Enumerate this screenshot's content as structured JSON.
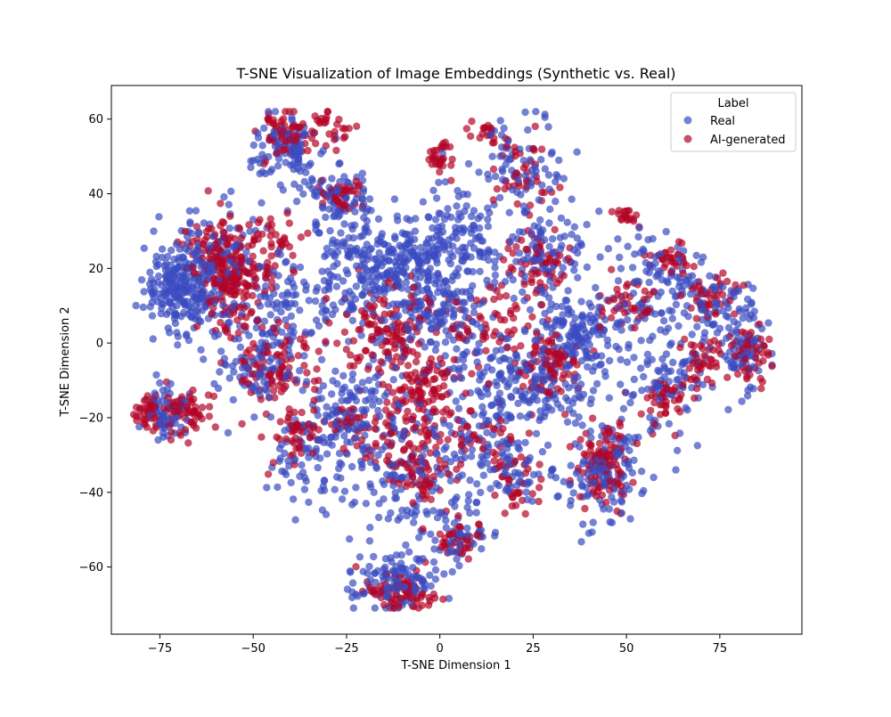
{
  "chart_data": {
    "type": "scatter",
    "title": "T-SNE Visualization of Image Embeddings (Synthetic vs. Real)",
    "xlabel": "T-SNE Dimension 1",
    "ylabel": "T-SNE Dimension 2",
    "xlim": [
      -88,
      97
    ],
    "ylim": [
      -78,
      69
    ],
    "xticks": [
      -75,
      -50,
      -25,
      0,
      25,
      50,
      75
    ],
    "yticks": [
      -60,
      -40,
      -20,
      0,
      20,
      40,
      60
    ],
    "xtick_labels": [
      "−75",
      "−50",
      "−25",
      "0",
      "25",
      "50",
      "75"
    ],
    "ytick_labels": [
      "−60",
      "−40",
      "−20",
      "0",
      "20",
      "40",
      "60"
    ],
    "grid": false,
    "legend": {
      "title": "Label",
      "position": "top-right",
      "entries": [
        "Real",
        "AI-generated"
      ]
    },
    "series": [
      {
        "name": "Real",
        "color": "#3b4cc0",
        "opacity": 0.7,
        "clusters": [
          {
            "x": -69,
            "y": 15,
            "sx": 5,
            "sy": 6,
            "n": 220
          },
          {
            "x": -58,
            "y": 25,
            "sx": 6,
            "sy": 6,
            "n": 90
          },
          {
            "x": -73,
            "y": -19,
            "sx": 3,
            "sy": 3,
            "n": 60
          },
          {
            "x": -42,
            "y": 52,
            "sx": 5,
            "sy": 4,
            "n": 90
          },
          {
            "x": -28,
            "y": 40,
            "sx": 5,
            "sy": 4,
            "n": 70
          },
          {
            "x": -22,
            "y": 22,
            "sx": 7,
            "sy": 8,
            "n": 160
          },
          {
            "x": -8,
            "y": 20,
            "sx": 7,
            "sy": 8,
            "n": 150
          },
          {
            "x": 5,
            "y": 28,
            "sx": 6,
            "sy": 7,
            "n": 120
          },
          {
            "x": -40,
            "y": 10,
            "sx": 8,
            "sy": 7,
            "n": 110
          },
          {
            "x": -50,
            "y": -8,
            "sx": 6,
            "sy": 6,
            "n": 80
          },
          {
            "x": -22,
            "y": -18,
            "sx": 7,
            "sy": 7,
            "n": 120
          },
          {
            "x": -35,
            "y": -30,
            "sx": 6,
            "sy": 6,
            "n": 70
          },
          {
            "x": -10,
            "y": -38,
            "sx": 8,
            "sy": 7,
            "n": 110
          },
          {
            "x": -12,
            "y": -64,
            "sx": 6,
            "sy": 4,
            "n": 110
          },
          {
            "x": 5,
            "y": -52,
            "sx": 5,
            "sy": 4,
            "n": 50
          },
          {
            "x": 0,
            "y": 8,
            "sx": 8,
            "sy": 7,
            "n": 120
          },
          {
            "x": 15,
            "y": -10,
            "sx": 8,
            "sy": 8,
            "n": 110
          },
          {
            "x": 20,
            "y": 48,
            "sx": 6,
            "sy": 6,
            "n": 70
          },
          {
            "x": 28,
            "y": 22,
            "sx": 7,
            "sy": 7,
            "n": 110
          },
          {
            "x": 38,
            "y": 2,
            "sx": 6,
            "sy": 6,
            "n": 130
          },
          {
            "x": 30,
            "y": -12,
            "sx": 6,
            "sy": 6,
            "n": 90
          },
          {
            "x": 44,
            "y": -35,
            "sx": 5,
            "sy": 6,
            "n": 130
          },
          {
            "x": 58,
            "y": 15,
            "sx": 6,
            "sy": 7,
            "n": 100
          },
          {
            "x": 62,
            "y": -10,
            "sx": 6,
            "sy": 7,
            "n": 90
          },
          {
            "x": 75,
            "y": 8,
            "sx": 5,
            "sy": 5,
            "n": 80
          },
          {
            "x": 82,
            "y": -3,
            "sx": 3,
            "sy": 4,
            "n": 50
          },
          {
            "x": 10,
            "y": -28,
            "sx": 8,
            "sy": 6,
            "n": 70
          },
          {
            "x": 22,
            "y": -34,
            "sx": 5,
            "sy": 5,
            "n": 40
          }
        ]
      },
      {
        "name": "AI-generated",
        "color": "#b40426",
        "opacity": 0.7,
        "clusters": [
          {
            "x": -56,
            "y": 17,
            "sx": 4,
            "sy": 7,
            "n": 180
          },
          {
            "x": -62,
            "y": 26,
            "sx": 4,
            "sy": 3,
            "n": 40
          },
          {
            "x": -68,
            "y": -18,
            "sx": 3,
            "sy": 3,
            "n": 60
          },
          {
            "x": -78,
            "y": -19,
            "sx": 2,
            "sy": 2,
            "n": 40
          },
          {
            "x": -42,
            "y": 56,
            "sx": 3,
            "sy": 3,
            "n": 60
          },
          {
            "x": -30,
            "y": 57,
            "sx": 3,
            "sy": 3,
            "n": 30
          },
          {
            "x": -27,
            "y": 40,
            "sx": 3,
            "sy": 2,
            "n": 40
          },
          {
            "x": -45,
            "y": 25,
            "sx": 5,
            "sy": 5,
            "n": 50
          },
          {
            "x": -45,
            "y": -6,
            "sx": 6,
            "sy": 6,
            "n": 100
          },
          {
            "x": -38,
            "y": -25,
            "sx": 4,
            "sy": 4,
            "n": 50
          },
          {
            "x": -19,
            "y": -22,
            "sx": 5,
            "sy": 4,
            "n": 50
          },
          {
            "x": -11,
            "y": 3,
            "sx": 7,
            "sy": 7,
            "n": 140
          },
          {
            "x": -5,
            "y": -12,
            "sx": 5,
            "sy": 5,
            "n": 90
          },
          {
            "x": -7,
            "y": -33,
            "sx": 5,
            "sy": 5,
            "n": 80
          },
          {
            "x": -10,
            "y": -66,
            "sx": 5,
            "sy": 3,
            "n": 80
          },
          {
            "x": 0,
            "y": 50,
            "sx": 2,
            "sy": 2,
            "n": 30
          },
          {
            "x": 5,
            "y": -53,
            "sx": 4,
            "sy": 3,
            "n": 40
          },
          {
            "x": 12,
            "y": 57,
            "sx": 3,
            "sy": 2,
            "n": 20
          },
          {
            "x": 22,
            "y": 45,
            "sx": 4,
            "sy": 6,
            "n": 40
          },
          {
            "x": 28,
            "y": 22,
            "sx": 5,
            "sy": 4,
            "n": 60
          },
          {
            "x": 15,
            "y": 5,
            "sx": 6,
            "sy": 6,
            "n": 60
          },
          {
            "x": 30,
            "y": -7,
            "sx": 4,
            "sy": 4,
            "n": 80
          },
          {
            "x": 44,
            "y": -33,
            "sx": 3,
            "sy": 6,
            "n": 100
          },
          {
            "x": 50,
            "y": 34,
            "sx": 2,
            "sy": 1,
            "n": 20
          },
          {
            "x": 50,
            "y": 10,
            "sx": 4,
            "sy": 4,
            "n": 40
          },
          {
            "x": 62,
            "y": 22,
            "sx": 3,
            "sy": 2,
            "n": 30
          },
          {
            "x": 60,
            "y": -16,
            "sx": 3,
            "sy": 3,
            "n": 40
          },
          {
            "x": 70,
            "y": -5,
            "sx": 3,
            "sy": 3,
            "n": 40
          },
          {
            "x": 73,
            "y": 13,
            "sx": 4,
            "sy": 3,
            "n": 40
          },
          {
            "x": 83,
            "y": -3,
            "sx": 3,
            "sy": 4,
            "n": 50
          },
          {
            "x": 20,
            "y": -38,
            "sx": 4,
            "sy": 4,
            "n": 40
          },
          {
            "x": 8,
            "y": -25,
            "sx": 6,
            "sy": 5,
            "n": 40
          }
        ]
      }
    ]
  }
}
